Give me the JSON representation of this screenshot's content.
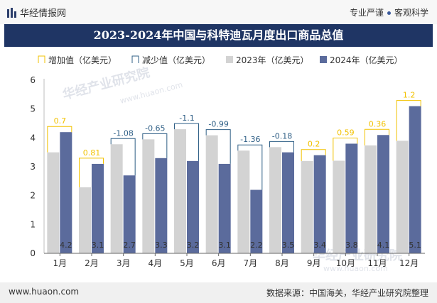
{
  "header": {
    "brand": "华经情报网",
    "tag1": "专业严谨",
    "tag2": "客观科学"
  },
  "title": "2023-2024年中国与科特迪瓦月度出口商品总值",
  "footer": {
    "url": "www.huaon.com",
    "source": "数据来源：中国海关，华经产业研究院整理"
  },
  "watermark": "华经产业研究院",
  "watermark_url": "www.huaon.com",
  "colors": {
    "s2023": "#d3d3d3",
    "s2024": "#5b6b9c",
    "increase": "#f2c200",
    "decrease": "#2f5f86",
    "title_bg": "#1f3564"
  },
  "chart_data": {
    "type": "bar",
    "title": "2023-2024年中国与科特迪瓦月度出口商品总值",
    "categories": [
      "1月",
      "2月",
      "3月",
      "4月",
      "5月",
      "6月",
      "7月",
      "8月",
      "9月",
      "10月",
      "11月",
      "12月"
    ],
    "series": [
      {
        "name": "2023年（亿美元）",
        "values": [
          3.5,
          2.29,
          3.78,
          3.95,
          4.3,
          4.09,
          3.56,
          3.68,
          3.2,
          3.21,
          3.74,
          3.9
        ]
      },
      {
        "name": "2024年（亿美元）",
        "values": [
          4.2,
          3.1,
          2.7,
          3.3,
          3.2,
          3.1,
          2.2,
          3.5,
          3.4,
          3.8,
          4.1,
          5.1
        ]
      }
    ],
    "change_labels": [
      "0.7",
      "0.81",
      "-1.08",
      "-0.65",
      "-1.1",
      "-0.99",
      "-1.36",
      "-0.18",
      "0.2",
      "0.59",
      "0.36",
      "1.2"
    ],
    "legend": [
      "增加值（亿美元）",
      "减少值（亿美元）",
      "2023年（亿美元）",
      "2024年（亿美元）"
    ],
    "ylim": [
      0,
      6
    ],
    "yticks": [
      "0",
      "1",
      "2",
      "3",
      "4",
      "5",
      "6"
    ],
    "legend_position": "top"
  }
}
